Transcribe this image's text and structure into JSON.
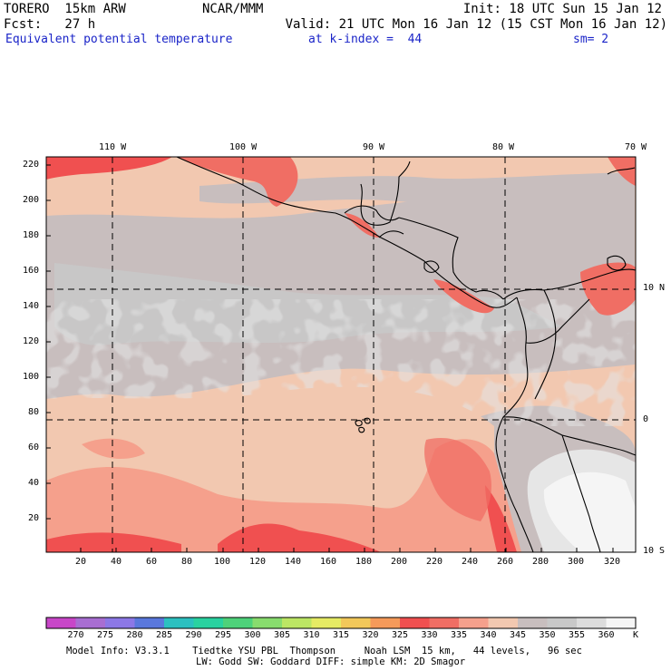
{
  "header": {
    "model": "TORERO  15km ARW",
    "center": "NCAR/MMM",
    "init": "Init: 18 UTC Sun 15 Jan 12",
    "fcst": "Fcst:   27 h",
    "valid": "Valid: 21 UTC Mon 16 Jan 12 (15 CST Mon 16 Jan 12)",
    "field": "Equivalent potential temperature",
    "level": "at k-index =  44",
    "smooth": "sm= 2"
  },
  "map": {
    "lon_labels": [
      "110 W",
      "100 W",
      "90 W",
      "80 W",
      "70 W"
    ],
    "lat_labels": [
      "10 N",
      "0",
      "10 S"
    ],
    "x_ticks": [
      "20",
      "40",
      "60",
      "80",
      "100",
      "120",
      "140",
      "160",
      "180",
      "200",
      "220",
      "240",
      "260",
      "280",
      "300",
      "320"
    ],
    "y_ticks": [
      "20",
      "40",
      "60",
      "80",
      "100",
      "120",
      "140",
      "160",
      "180",
      "200",
      "220"
    ]
  },
  "colorbar": {
    "unit": "K",
    "labels": [
      "270",
      "275",
      "280",
      "285",
      "290",
      "295",
      "300",
      "305",
      "310",
      "315",
      "320",
      "325",
      "330",
      "335",
      "340",
      "345",
      "350",
      "355",
      "360"
    ],
    "colors": [
      "#c846c8",
      "#a86ed2",
      "#8c78e6",
      "#5a78dc",
      "#2cc0c0",
      "#2ad2a0",
      "#4ed27a",
      "#88dc6e",
      "#bce664",
      "#e6eb64",
      "#f2c85a",
      "#f59a5a",
      "#f05050",
      "#f06e64",
      "#f5a08c",
      "#f2c8b0",
      "#c8bebe",
      "#c8c8c8",
      "#dcdcdc",
      "#f5f5f5"
    ]
  },
  "footer": {
    "line1": "Model Info: V3.3.1    Tiedtke YSU PBL  Thompson     Noah LSM  15 km,   44 levels,   96 sec",
    "line2": "LW: Godd SW: Goddard DIFF: simple KM: 2D Smagor"
  }
}
